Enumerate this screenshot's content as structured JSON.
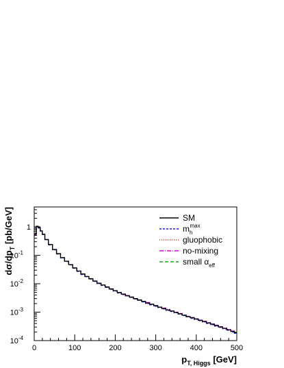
{
  "chart_data": {
    "type": "line",
    "title": "",
    "xlabel": "p_T, Higgs [GeV]",
    "ylabel": "dσ/dp_T [pb/GeV]",
    "xlim": [
      0,
      500
    ],
    "ylim": [
      0.0001,
      5
    ],
    "yscale": "log",
    "grid": false,
    "legend_position": "top-right",
    "x_ticks": [
      "0",
      "100",
      "200",
      "300",
      "400",
      "500"
    ],
    "y_ticks": [
      "10^-4",
      "10^-3",
      "10^-2",
      "10^-1",
      "1"
    ],
    "x": [
      2.5,
      7.5,
      12.5,
      17.5,
      22.5,
      30,
      40,
      50,
      60,
      70,
      80,
      90,
      100,
      110,
      120,
      130,
      140,
      150,
      160,
      170,
      180,
      190,
      200,
      210,
      220,
      230,
      240,
      250,
      260,
      270,
      280,
      290,
      300,
      310,
      320,
      330,
      340,
      350,
      360,
      370,
      380,
      390,
      400,
      410,
      420,
      430,
      440,
      450,
      460,
      470,
      480,
      490,
      497.5
    ],
    "series": [
      {
        "name": "SM",
        "color": "#000000",
        "dash": "solid",
        "values": [
          0.55,
          1.05,
          0.95,
          0.72,
          0.55,
          0.36,
          0.24,
          0.16,
          0.115,
          0.083,
          0.062,
          0.047,
          0.036,
          0.028,
          0.022,
          0.018,
          0.015,
          0.0125,
          0.0105,
          0.009,
          0.0077,
          0.0066,
          0.0057,
          0.0049,
          0.0043,
          0.0038,
          0.0034,
          0.003,
          0.0027,
          0.0024,
          0.0021,
          0.0019,
          0.0017,
          0.0015,
          0.00135,
          0.0012,
          0.0011,
          0.00098,
          0.00088,
          0.00078,
          0.0007,
          0.00064,
          0.00058,
          0.00052,
          0.00047,
          0.00042,
          0.00038,
          0.00034,
          0.0003,
          0.00027,
          0.00024,
          0.00021,
          0.00019
        ]
      },
      {
        "name": "m_h^max",
        "color": "#1a1aff",
        "dash": "3,2",
        "values": [
          0.5,
          1.0,
          0.9,
          0.7,
          0.53,
          0.35,
          0.23,
          0.155,
          0.11,
          0.08,
          0.06,
          0.046,
          0.035,
          0.027,
          0.021,
          0.0175,
          0.0145,
          0.012,
          0.01,
          0.0087,
          0.0074,
          0.0063,
          0.0055,
          0.0047,
          0.0041,
          0.0037,
          0.0033,
          0.0029,
          0.0026,
          0.0023,
          0.002,
          0.0018,
          0.0016,
          0.00145,
          0.0013,
          0.00115,
          0.00105,
          0.00095,
          0.00085,
          0.00075,
          0.00068,
          0.0006,
          0.00055,
          0.0005,
          0.00045,
          0.0004,
          0.00036,
          0.00032,
          0.00029,
          0.00026,
          0.00023,
          0.0002,
          0.00018
        ]
      },
      {
        "name": "gluophobic",
        "color": "#ff2a00",
        "dash": "1,2",
        "values": [
          0.52,
          1.02,
          0.92,
          0.7,
          0.54,
          0.35,
          0.235,
          0.158,
          0.112,
          0.081,
          0.061,
          0.046,
          0.0355,
          0.0275,
          0.0215,
          0.0178,
          0.0148,
          0.0122,
          0.0102,
          0.0088,
          0.0075,
          0.0064,
          0.0056,
          0.0048,
          0.0042,
          0.0037,
          0.0033,
          0.0029,
          0.0026,
          0.0023,
          0.00205,
          0.00185,
          0.00165,
          0.0015,
          0.00132,
          0.00118,
          0.00107,
          0.00096,
          0.00086,
          0.00077,
          0.00069,
          0.00062,
          0.00056,
          0.0005,
          0.00046,
          0.00041,
          0.00037,
          0.00033,
          0.0003,
          0.00027,
          0.00024,
          0.00021,
          0.00019
        ]
      },
      {
        "name": "no-mixing",
        "color": "#e600e6",
        "dash": "6,2,1,2",
        "values": [
          0.53,
          1.03,
          0.93,
          0.71,
          0.55,
          0.36,
          0.238,
          0.16,
          0.113,
          0.082,
          0.062,
          0.047,
          0.036,
          0.028,
          0.022,
          0.018,
          0.015,
          0.0124,
          0.0104,
          0.009,
          0.0076,
          0.0066,
          0.0057,
          0.0049,
          0.0044,
          0.0039,
          0.0034,
          0.003,
          0.0027,
          0.0024,
          0.0022,
          0.0019,
          0.0017,
          0.0015,
          0.0014,
          0.00125,
          0.0011,
          0.001,
          0.0009,
          0.0008,
          0.00072,
          0.00065,
          0.00058,
          0.00053,
          0.00048,
          0.00043,
          0.00039,
          0.00035,
          0.00031,
          0.00028,
          0.00025,
          0.00022,
          0.0002
        ]
      },
      {
        "name": "small α_eff",
        "color": "#00b300",
        "dash": "5,3",
        "values": [
          0.51,
          1.01,
          0.91,
          0.7,
          0.54,
          0.35,
          0.236,
          0.158,
          0.111,
          0.081,
          0.061,
          0.046,
          0.0352,
          0.0275,
          0.0215,
          0.0177,
          0.0147,
          0.0122,
          0.0102,
          0.0088,
          0.0075,
          0.0064,
          0.0056,
          0.0048,
          0.0042,
          0.0037,
          0.0033,
          0.0029,
          0.0026,
          0.0023,
          0.0021,
          0.0019,
          0.0017,
          0.0015,
          0.0013,
          0.0012,
          0.0011,
          0.00098,
          0.00088,
          0.00079,
          0.0007,
          0.00063,
          0.00057,
          0.00051,
          0.00046,
          0.00042,
          0.00038,
          0.00034,
          0.0003,
          0.00027,
          0.00024,
          0.00022,
          0.0002
        ]
      }
    ]
  }
}
